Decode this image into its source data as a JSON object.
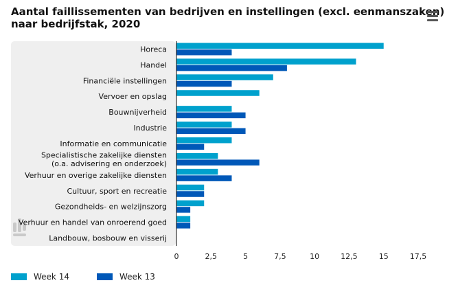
{
  "title_line1": "Aantal faillissementen van bedrijven en instellingen (excl. eenmanszaken)",
  "title_line2": "naar bedrijfstak, 2020",
  "menu_icon": "hamburger-menu-icon",
  "colors": {
    "week14": "#00a1cd",
    "week13": "#0058b8",
    "panel": "#efefef",
    "axis": "#000000"
  },
  "chart_data": {
    "type": "bar",
    "orientation": "horizontal",
    "title": "Aantal faillissementen van bedrijven en instellingen (excl. eenmanszaken) naar bedrijfstak, 2020",
    "categories": [
      [
        "Horeca"
      ],
      [
        "Handel"
      ],
      [
        "Financiële instellingen"
      ],
      [
        "Vervoer en opslag"
      ],
      [
        "Bouwnijverheid"
      ],
      [
        "Industrie"
      ],
      [
        "Informatie en communicatie"
      ],
      [
        "Specialistische zakelijke diensten",
        "(o.a. advisering en onderzoek)"
      ],
      [
        "Verhuur en overige zakelijke diensten"
      ],
      [
        "Cultuur, sport en recreatie"
      ],
      [
        "Gezondheids- en welzijnszorg"
      ],
      [
        "Verhuur en handel van onroerend goed"
      ],
      [
        "Landbouw, bosbouw en visserij"
      ]
    ],
    "series": [
      {
        "name": "Week 14",
        "color": "#00a1cd",
        "values": [
          15,
          13,
          7,
          6,
          4,
          4,
          4,
          3,
          3,
          2,
          2,
          1,
          0
        ]
      },
      {
        "name": "Week 13",
        "color": "#0058b8",
        "values": [
          4,
          8,
          4,
          0,
          5,
          5,
          2,
          6,
          4,
          2,
          1,
          1,
          0
        ]
      }
    ],
    "xlim": [
      0,
      17.5
    ],
    "xticks": [
      "0",
      "2,5",
      "5",
      "7,5",
      "10",
      "12,5",
      "15",
      "17,5"
    ],
    "xtick_values": [
      0,
      2.5,
      5,
      7.5,
      10,
      12.5,
      15,
      17.5
    ],
    "grid": false,
    "legend_position": "bottom-left",
    "watermark": "CBS"
  }
}
